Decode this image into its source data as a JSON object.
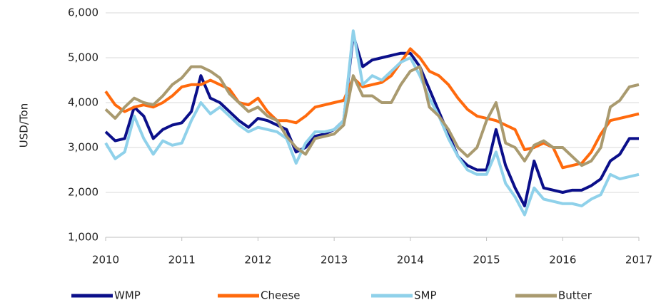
{
  "chart_data": {
    "type": "line",
    "y_label": "USD/Ton",
    "x": [
      2010,
      2010.125,
      2010.25,
      2010.375,
      2010.5,
      2010.625,
      2010.75,
      2010.875,
      2011,
      2011.125,
      2011.25,
      2011.375,
      2011.5,
      2011.625,
      2011.75,
      2011.875,
      2012,
      2012.125,
      2012.25,
      2012.375,
      2012.5,
      2012.625,
      2012.75,
      2012.875,
      2013,
      2013.125,
      2013.25,
      2013.375,
      2013.5,
      2013.625,
      2013.75,
      2013.875,
      2014,
      2014.125,
      2014.25,
      2014.375,
      2014.5,
      2014.625,
      2014.75,
      2014.875,
      2015,
      2015.125,
      2015.25,
      2015.375,
      2015.5,
      2015.625,
      2015.75,
      2015.875,
      2016,
      2016.125,
      2016.25,
      2016.375,
      2016.5,
      2016.625,
      2016.75,
      2016.875,
      2017
    ],
    "series": [
      {
        "name": "WMP",
        "color": "#0b0f8a",
        "values": [
          3350,
          3150,
          3200,
          3900,
          3700,
          3200,
          3400,
          3500,
          3550,
          3800,
          4600,
          4100,
          4000,
          3800,
          3600,
          3450,
          3650,
          3600,
          3500,
          3400,
          2900,
          3000,
          3250,
          3300,
          3400,
          3600,
          5500,
          4800,
          4950,
          5000,
          5050,
          5100,
          5100,
          4800,
          4300,
          3800,
          3300,
          2800,
          2600,
          2500,
          2500,
          3400,
          2600,
          2100,
          1700,
          2700,
          2100,
          2050,
          2000,
          2050,
          2050,
          2150,
          2300,
          2700,
          2850,
          3200,
          3200
        ]
      },
      {
        "name": "Cheese",
        "color": "#ff6a0d",
        "values": [
          4250,
          3950,
          3800,
          3900,
          3950,
          3900,
          4000,
          4150,
          4350,
          4400,
          4400,
          4500,
          4400,
          4300,
          4000,
          3950,
          4100,
          3800,
          3600,
          3600,
          3550,
          3700,
          3900,
          3950,
          4000,
          4050,
          4550,
          4350,
          4400,
          4450,
          4600,
          4900,
          5200,
          5000,
          4700,
          4600,
          4400,
          4100,
          3850,
          3700,
          3650,
          3600,
          3500,
          3400,
          2950,
          3000,
          3100,
          3000,
          2550,
          2600,
          2650,
          2900,
          3300,
          3600,
          3650,
          3700,
          3750
        ]
      },
      {
        "name": "SMP",
        "color": "#8fd1ea",
        "values": [
          3100,
          2750,
          2900,
          3700,
          3200,
          2850,
          3150,
          3050,
          3100,
          3600,
          4000,
          3750,
          3900,
          3700,
          3500,
          3350,
          3450,
          3400,
          3350,
          3200,
          2650,
          3100,
          3350,
          3350,
          3400,
          3600,
          5600,
          4400,
          4600,
          4500,
          4700,
          4900,
          5000,
          4600,
          4100,
          3700,
          3200,
          2800,
          2500,
          2400,
          2400,
          2900,
          2200,
          1900,
          1500,
          2100,
          1850,
          1800,
          1750,
          1750,
          1700,
          1850,
          1950,
          2400,
          2300,
          2350,
          2400
        ]
      },
      {
        "name": "Butter",
        "color": "#a99a6f",
        "values": [
          3850,
          3650,
          3900,
          4100,
          4000,
          3950,
          4150,
          4400,
          4550,
          4800,
          4800,
          4700,
          4550,
          4200,
          4000,
          3800,
          3900,
          3700,
          3600,
          3250,
          3000,
          2850,
          3200,
          3250,
          3300,
          3500,
          4600,
          4150,
          4150,
          4000,
          4000,
          4400,
          4700,
          4800,
          3900,
          3700,
          3400,
          3000,
          2800,
          3000,
          3600,
          4000,
          3100,
          3000,
          2700,
          3050,
          3150,
          3000,
          3000,
          2800,
          2600,
          2700,
          3000,
          3900,
          4050,
          4350,
          4400
        ]
      }
    ],
    "xlim": [
      2010,
      2017
    ],
    "xticks": [
      2010,
      2011,
      2012,
      2013,
      2014,
      2015,
      2016,
      2017
    ],
    "ylim": [
      1000,
      6000
    ],
    "yticks": [
      {
        "value": 1000,
        "label": "1,000"
      },
      {
        "value": 2000,
        "label": "2,000"
      },
      {
        "value": 3000,
        "label": "3,000"
      },
      {
        "value": 4000,
        "label": "4,000"
      },
      {
        "value": 5000,
        "label": "5,000"
      },
      {
        "value": 6000,
        "label": "6,000"
      }
    ],
    "grid": true,
    "legend": "bottom"
  }
}
